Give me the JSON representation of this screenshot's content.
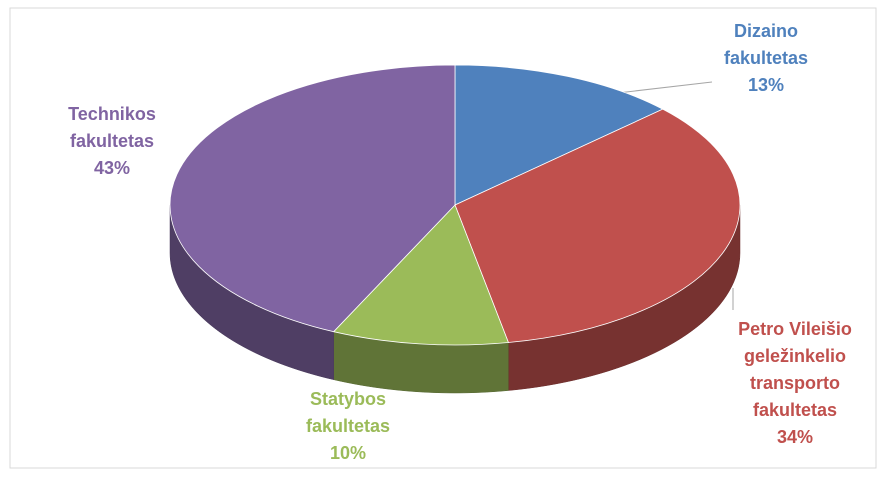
{
  "chart_data": {
    "type": "pie",
    "categories": [
      "Dizaino fakultetas",
      "Petro Vileišio geležinkelio transporto fakultetas",
      "Statybos fakultetas",
      "Technikos fakultetas"
    ],
    "values": [
      13,
      34,
      10,
      43
    ],
    "value_labels": [
      "13%",
      "34%",
      "10%",
      "43%"
    ],
    "colors": [
      "#4f81bd",
      "#c0504d",
      "#9bbb59",
      "#8064a2"
    ]
  }
}
